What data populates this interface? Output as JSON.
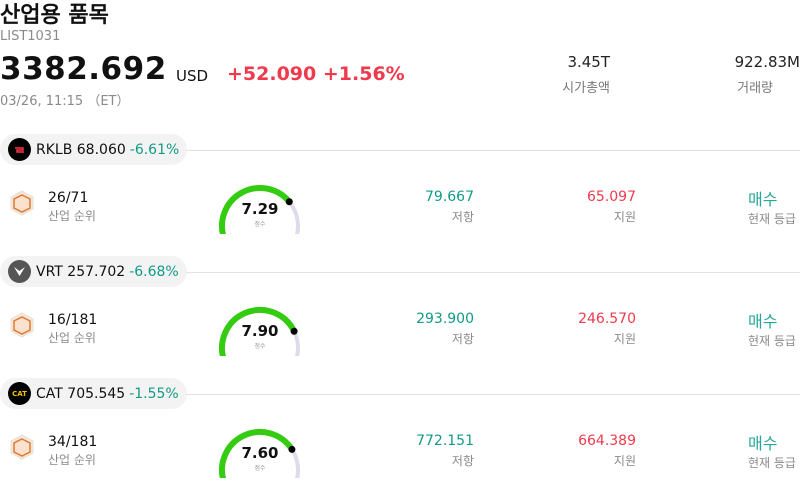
{
  "header": {
    "title": "산업용 품목",
    "code": "LIST1031",
    "price": "3382.692",
    "currency": "USD",
    "change": "+52.090",
    "change_pct": "+1.56%",
    "timestamp": "03/26, 11:15 （ET）",
    "market_cap": {
      "value": "3.45T",
      "label": "시가총액"
    },
    "volume": {
      "value": "922.83M",
      "label": "거래량"
    }
  },
  "colors": {
    "up": "#f03a4c",
    "down": "#129a87",
    "gauge": "#33cc11",
    "buy": "#26a69a"
  },
  "rows": [
    {
      "ticker": "RKLB",
      "price": "68.060",
      "change_pct": "-6.61%",
      "logo_icon": "rocket-lab-logo",
      "rank": "26/71",
      "rank_label": "산업 순위",
      "score": "7.29",
      "score_value": 7.29,
      "score_label": "점수",
      "resistance": "79.667",
      "resistance_label": "저항",
      "support": "65.097",
      "support_label": "지원",
      "grade": "매수",
      "grade_label": "현재 등급"
    },
    {
      "ticker": "VRT",
      "price": "257.702",
      "change_pct": "-6.68%",
      "logo_icon": "vertiv-logo",
      "rank": "16/181",
      "rank_label": "산업 순위",
      "score": "7.90",
      "score_value": 7.9,
      "score_label": "점수",
      "resistance": "293.900",
      "resistance_label": "저항",
      "support": "246.570",
      "support_label": "지원",
      "grade": "매수",
      "grade_label": "현재 등급"
    },
    {
      "ticker": "CAT",
      "price": "705.545",
      "change_pct": "-1.55%",
      "logo_icon": "caterpillar-logo",
      "logo_text": "CAT",
      "rank": "34/181",
      "rank_label": "산업 순위",
      "score": "7.60",
      "score_value": 7.6,
      "score_label": "점수",
      "resistance": "772.151",
      "resistance_label": "저항",
      "support": "664.389",
      "support_label": "지원",
      "grade": "매수",
      "grade_label": "현재 등급"
    }
  ]
}
